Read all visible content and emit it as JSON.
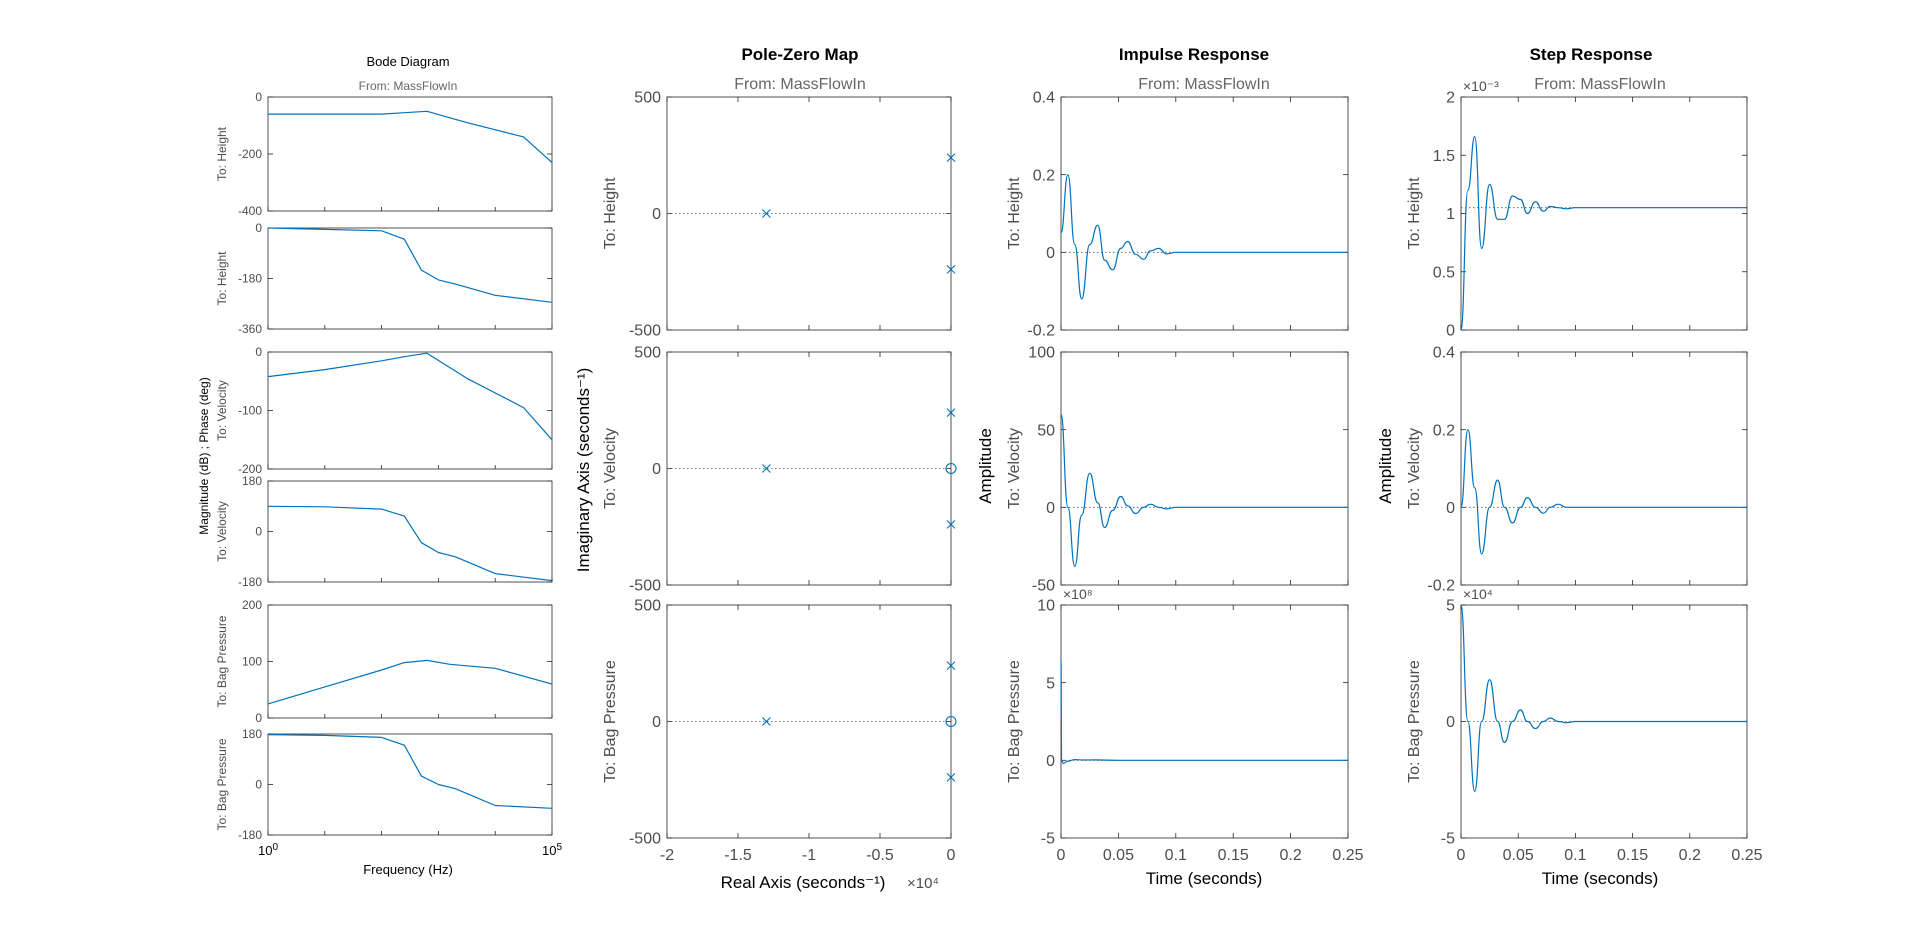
{
  "chart_data": [
    {
      "type": "line",
      "title": "Bode Diagram",
      "subtitle": "From: MassFlowIn",
      "xlabel": "Frequency  (Hz)",
      "ylabel": "Magnitude (dB) ; Phase (deg)",
      "x_scale": "log",
      "xlim": [
        1,
        100000
      ],
      "x_ticks": [
        "10^0",
        "10^5"
      ],
      "colors": {
        "line": "#0072BD",
        "axis": "#262626",
        "tick_text": "#4d4d4d"
      },
      "rows": [
        {
          "label": "To: Height",
          "ylim": [
            -400,
            0
          ],
          "yticks": [
            -400,
            -200,
            0
          ],
          "series": [
            {
              "logx": [
                0,
                1,
                2,
                2.4,
                2.8,
                3.5,
                4.5,
                5
              ],
              "values": [
                -60,
                -60,
                -60,
                -55,
                -50,
                -90,
                -140,
                -230
              ]
            }
          ]
        },
        {
          "label": "To: Height",
          "ylim": [
            -360,
            0
          ],
          "yticks": [
            -360,
            -180,
            0
          ],
          "series": [
            {
              "logx": [
                0,
                1,
                2,
                2.4,
                2.7,
                3,
                3.3,
                4,
                5
              ],
              "values": [
                0,
                -5,
                -10,
                -40,
                -150,
                -185,
                -200,
                -240,
                -265
              ]
            }
          ]
        },
        {
          "label": "To: Velocity",
          "ylim": [
            -200,
            0
          ],
          "yticks": [
            -200,
            -100,
            0
          ],
          "series": [
            {
              "logx": [
                0,
                1,
                2,
                2.4,
                2.8,
                3.5,
                4.5,
                5
              ],
              "values": [
                -42,
                -30,
                -15,
                -8,
                -2,
                -45,
                -95,
                -150
              ]
            }
          ]
        },
        {
          "label": "To: Velocity",
          "ylim": [
            -180,
            180
          ],
          "yticks": [
            -180,
            0,
            180
          ],
          "series": [
            {
              "logx": [
                0,
                1,
                2,
                2.4,
                2.7,
                3,
                3.3,
                4,
                5
              ],
              "values": [
                90,
                88,
                80,
                55,
                -40,
                -75,
                -90,
                -150,
                -175
              ]
            }
          ]
        },
        {
          "label": "To: Bag Pressure",
          "ylim": [
            0,
            200
          ],
          "yticks": [
            0,
            100,
            200
          ],
          "series": [
            {
              "logx": [
                0,
                1,
                2,
                2.4,
                2.8,
                3.2,
                4,
                5
              ],
              "values": [
                25,
                55,
                85,
                98,
                102,
                95,
                88,
                60
              ]
            }
          ]
        },
        {
          "label": "To: Bag Pressure",
          "ylim": [
            -180,
            180
          ],
          "yticks": [
            -180,
            0,
            180
          ],
          "series": [
            {
              "logx": [
                0,
                1,
                2,
                2.4,
                2.7,
                3,
                3.3,
                4,
                5
              ],
              "values": [
                178,
                175,
                168,
                140,
                30,
                0,
                -15,
                -75,
                -85
              ]
            }
          ]
        }
      ]
    },
    {
      "type": "scatter",
      "title": "Pole-Zero Map",
      "subtitle": "From: MassFlowIn",
      "xlabel": "Real Axis (seconds⁻¹)",
      "ylabel": "Imaginary Axis (seconds⁻¹)",
      "x_multiplier": "×10⁴",
      "xlim": [
        -2,
        0
      ],
      "x_ticks": [
        -2,
        -1.5,
        -1,
        -0.5,
        0
      ],
      "colors": {
        "marker": "#0072BD"
      },
      "rows": [
        {
          "label": "To: Height",
          "ylim": [
            -500,
            500
          ],
          "yticks": [
            -500,
            0,
            500
          ],
          "poles": [
            [
              -1.3,
              0
            ],
            [
              0,
              240
            ],
            [
              0,
              -240
            ]
          ],
          "zeros": []
        },
        {
          "label": "To: Velocity",
          "ylim": [
            -500,
            500
          ],
          "yticks": [
            -500,
            0,
            500
          ],
          "poles": [
            [
              -1.3,
              0
            ],
            [
              0,
              240
            ],
            [
              0,
              -240
            ]
          ],
          "zeros": [
            [
              0,
              0
            ]
          ]
        },
        {
          "label": "To: Bag Pressure",
          "ylim": [
            -500,
            500
          ],
          "yticks": [
            -500,
            0,
            500
          ],
          "poles": [
            [
              -1.3,
              0
            ],
            [
              0,
              240
            ],
            [
              0,
              -240
            ]
          ],
          "zeros": [
            [
              0,
              0
            ]
          ]
        }
      ]
    },
    {
      "type": "line",
      "title": "Impulse Response",
      "subtitle": "From: MassFlowIn",
      "xlabel": "Time (seconds)",
      "ylabel": "Amplitude",
      "xlim": [
        0,
        0.25
      ],
      "x_ticks": [
        0,
        0.05,
        0.1,
        0.15,
        0.2,
        0.25
      ],
      "rows": [
        {
          "label": "To: Height",
          "ylim": [
            -0.2,
            0.4
          ],
          "yticks": [
            -0.2,
            0,
            0.2,
            0.4
          ],
          "final": 0,
          "series": [
            {
              "x": [
                0,
                0.006,
                0.012,
                0.018,
                0.025,
                0.032,
                0.038,
                0.045,
                0.052,
                0.058,
                0.065,
                0.072,
                0.078,
                0.085,
                0.092,
                0.1,
                0.12,
                0.25
              ],
              "values": [
                0.05,
                0.2,
                0.02,
                -0.12,
                0.02,
                0.07,
                -0.02,
                -0.045,
                0.01,
                0.028,
                -0.005,
                -0.018,
                0.004,
                0.01,
                -0.004,
                0,
                0,
                0
              ]
            }
          ]
        },
        {
          "label": "To: Velocity",
          "ylim": [
            -50,
            100
          ],
          "yticks": [
            -50,
            0,
            50,
            100
          ],
          "final": 0,
          "series": [
            {
              "x": [
                0,
                0.006,
                0.012,
                0.018,
                0.025,
                0.032,
                0.038,
                0.045,
                0.052,
                0.058,
                0.065,
                0.072,
                0.078,
                0.085,
                0.092,
                0.1,
                0.12,
                0.25
              ],
              "values": [
                60,
                0,
                -38,
                -5,
                22,
                3,
                -13,
                -2,
                7,
                1,
                -4,
                0,
                2,
                0,
                -1,
                0,
                0,
                0
              ]
            }
          ]
        },
        {
          "label": "To: Bag Pressure",
          "ylim": [
            -5,
            10
          ],
          "yticks": [
            -5,
            0,
            5,
            10
          ],
          "y_multiplier": "×10⁸",
          "final": 0,
          "series": [
            {
              "x": [
                0,
                0.0005,
                0.002,
                0.006,
                0.012,
                0.02,
                0.03,
                0.05,
                0.25
              ],
              "values": [
                6.5,
                0,
                -0.2,
                -0.05,
                0.05,
                0.02,
                0.03,
                0,
                0
              ]
            }
          ]
        }
      ]
    },
    {
      "type": "line",
      "title": "Step Response",
      "subtitle": "From: MassFlowIn",
      "xlabel": "Time (seconds)",
      "ylabel": "Amplitude",
      "xlim": [
        0,
        0.25
      ],
      "x_ticks": [
        0,
        0.05,
        0.1,
        0.15,
        0.2,
        0.25
      ],
      "rows": [
        {
          "label": "To: Height",
          "ylim": [
            0,
            2
          ],
          "yticks": [
            0,
            0.5,
            1,
            1.5,
            2
          ],
          "y_multiplier": "×10⁻³",
          "final": 1.05,
          "series": [
            {
              "x": [
                0,
                0.006,
                0.012,
                0.018,
                0.025,
                0.032,
                0.038,
                0.045,
                0.052,
                0.058,
                0.065,
                0.072,
                0.078,
                0.085,
                0.092,
                0.1,
                0.12,
                0.25
              ],
              "values": [
                0,
                1.2,
                1.66,
                0.7,
                1.25,
                0.95,
                0.95,
                1.15,
                1.12,
                1.0,
                1.1,
                1.02,
                1.06,
                1.05,
                1.04,
                1.05,
                1.05,
                1.05
              ]
            }
          ]
        },
        {
          "label": "To: Velocity",
          "ylim": [
            -0.2,
            0.4
          ],
          "yticks": [
            -0.2,
            0,
            0.2,
            0.4
          ],
          "final": 0,
          "series": [
            {
              "x": [
                0,
                0.006,
                0.012,
                0.018,
                0.025,
                0.032,
                0.038,
                0.045,
                0.052,
                0.058,
                0.065,
                0.072,
                0.078,
                0.085,
                0.092,
                0.1,
                0.12,
                0.25
              ],
              "values": [
                0,
                0.2,
                0.05,
                -0.12,
                0.0,
                0.07,
                0.0,
                -0.04,
                0.0,
                0.025,
                0.0,
                -0.015,
                0.0,
                0.008,
                0,
                0,
                0,
                0
              ]
            }
          ]
        },
        {
          "label": "To: Bag Pressure",
          "ylim": [
            -5,
            5
          ],
          "yticks": [
            -5,
            0,
            5
          ],
          "y_multiplier": "×10⁴",
          "final": 0,
          "series": [
            {
              "x": [
                0,
                0.006,
                0.012,
                0.018,
                0.025,
                0.032,
                0.038,
                0.045,
                0.052,
                0.058,
                0.065,
                0.072,
                0.078,
                0.085,
                0.092,
                0.1,
                0.12,
                0.25
              ],
              "values": [
                5,
                0,
                -3,
                0,
                1.8,
                0,
                -0.9,
                0,
                0.5,
                0,
                -0.3,
                0,
                0.15,
                0,
                -0.05,
                0,
                0,
                0
              ]
            }
          ]
        }
      ]
    }
  ]
}
